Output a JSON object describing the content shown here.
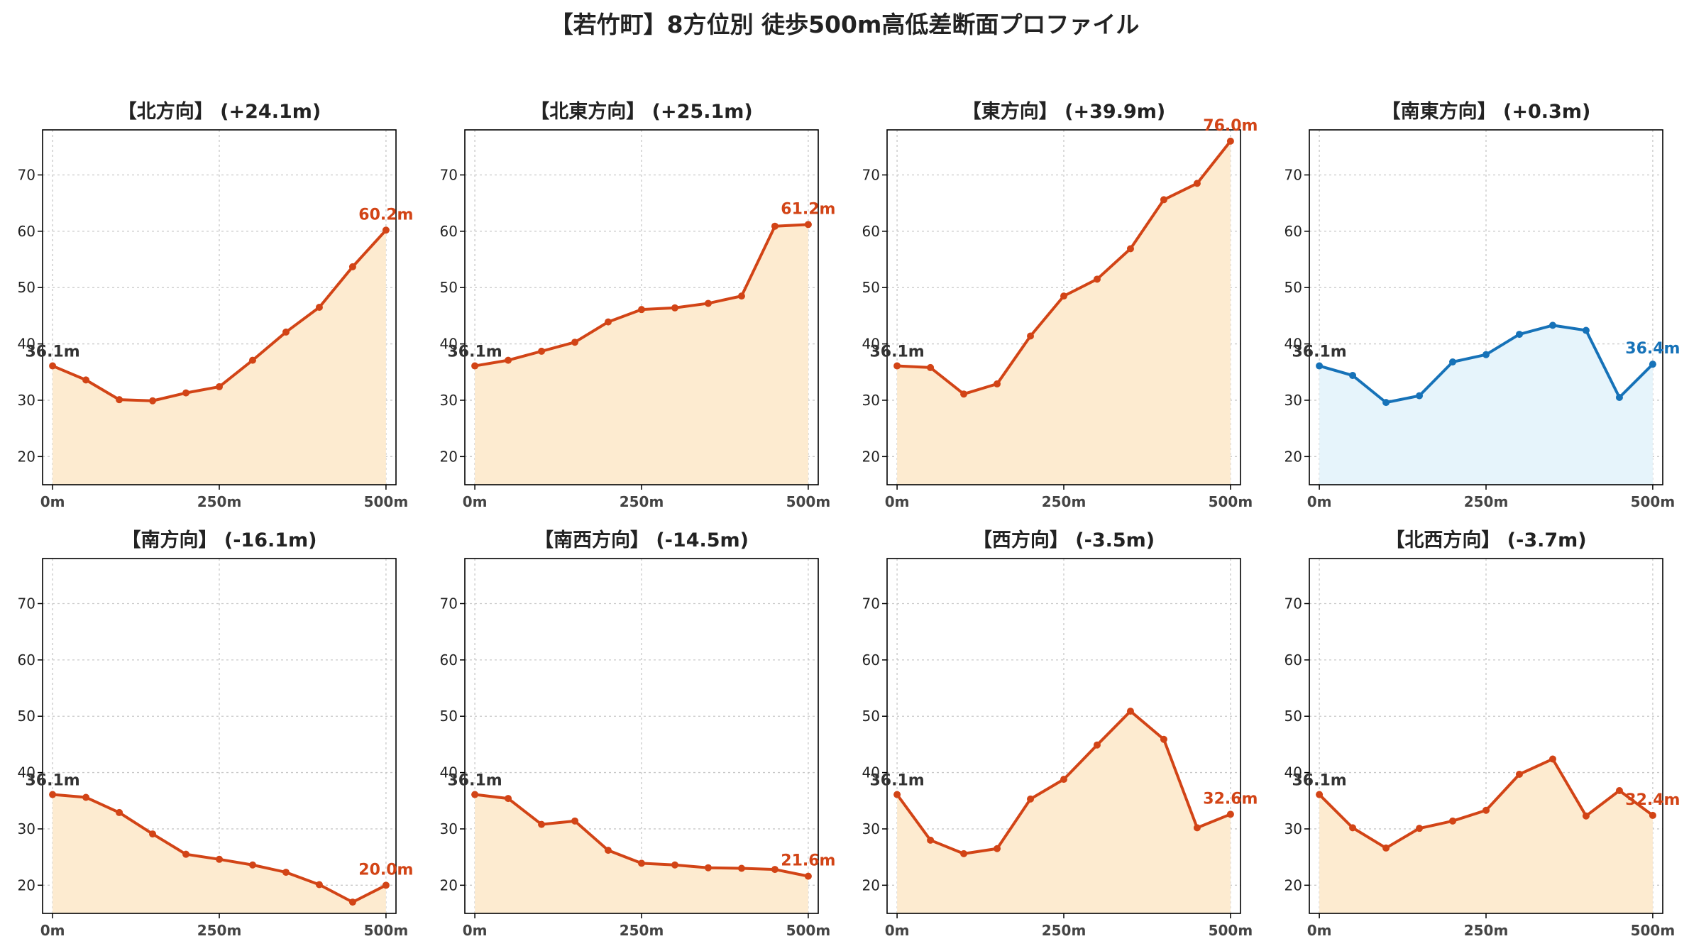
{
  "title": "【若竹町】8方位別 徒歩500m高低差断面プロファイル",
  "colors": {
    "up_line": "#d24416",
    "up_fill": "#fdebd0",
    "flat_line": "#1672b8",
    "flat_fill": "#e6f4fb",
    "grid": "#c8c8c8",
    "start_label": "#333333"
  },
  "chart_data": [
    {
      "type": "area",
      "title": "【北方向】 (+24.1m)",
      "x": [
        0,
        50,
        100,
        150,
        200,
        250,
        300,
        350,
        400,
        450,
        500
      ],
      "values": [
        36.1,
        33.6,
        30.1,
        29.9,
        31.3,
        32.4,
        37.1,
        42.1,
        46.5,
        53.7,
        60.2
      ],
      "x_ticks": [
        "0m",
        "250m",
        "500m"
      ],
      "y_ticks": [
        20,
        30,
        40,
        50,
        60,
        70
      ],
      "ylim": [
        15,
        78
      ],
      "xlim": [
        -15,
        515
      ],
      "start_label": "36.1m",
      "end_label": "60.2m",
      "color_scheme": "up",
      "grid": true
    },
    {
      "type": "area",
      "title": "【北東方向】 (+25.1m)",
      "x": [
        0,
        50,
        100,
        150,
        200,
        250,
        300,
        350,
        400,
        450,
        500
      ],
      "values": [
        36.1,
        37.1,
        38.7,
        40.3,
        43.9,
        46.1,
        46.4,
        47.2,
        48.5,
        60.9,
        61.2
      ],
      "x_ticks": [
        "0m",
        "250m",
        "500m"
      ],
      "y_ticks": [
        20,
        30,
        40,
        50,
        60,
        70
      ],
      "ylim": [
        15,
        78
      ],
      "xlim": [
        -15,
        515
      ],
      "start_label": "36.1m",
      "end_label": "61.2m",
      "color_scheme": "up",
      "grid": true
    },
    {
      "type": "area",
      "title": "【東方向】 (+39.9m)",
      "x": [
        0,
        50,
        100,
        150,
        200,
        250,
        300,
        350,
        400,
        450,
        500
      ],
      "values": [
        36.1,
        35.8,
        31.1,
        32.9,
        41.4,
        48.5,
        51.5,
        56.9,
        65.6,
        68.5,
        76.0
      ],
      "x_ticks": [
        "0m",
        "250m",
        "500m"
      ],
      "y_ticks": [
        20,
        30,
        40,
        50,
        60,
        70
      ],
      "ylim": [
        15,
        78
      ],
      "xlim": [
        -15,
        515
      ],
      "start_label": "36.1m",
      "end_label": "76.0m",
      "color_scheme": "up",
      "grid": true
    },
    {
      "type": "area",
      "title": "【南東方向】 (+0.3m)",
      "x": [
        0,
        50,
        100,
        150,
        200,
        250,
        300,
        350,
        400,
        450,
        500
      ],
      "values": [
        36.1,
        34.4,
        29.6,
        30.8,
        36.8,
        38.1,
        41.7,
        43.3,
        42.4,
        30.5,
        36.4
      ],
      "x_ticks": [
        "0m",
        "250m",
        "500m"
      ],
      "y_ticks": [
        20,
        30,
        40,
        50,
        60,
        70
      ],
      "ylim": [
        15,
        78
      ],
      "xlim": [
        -15,
        515
      ],
      "start_label": "36.1m",
      "end_label": "36.4m",
      "color_scheme": "flat",
      "grid": true
    },
    {
      "type": "area",
      "title": "【南方向】 (-16.1m)",
      "x": [
        0,
        50,
        100,
        150,
        200,
        250,
        300,
        350,
        400,
        450,
        500
      ],
      "values": [
        36.1,
        35.6,
        32.9,
        29.1,
        25.5,
        24.6,
        23.6,
        22.3,
        20.1,
        17.0,
        20.0
      ],
      "x_ticks": [
        "0m",
        "250m",
        "500m"
      ],
      "y_ticks": [
        20,
        30,
        40,
        50,
        60,
        70
      ],
      "ylim": [
        15,
        78
      ],
      "xlim": [
        -15,
        515
      ],
      "start_label": "36.1m",
      "end_label": "20.0m",
      "color_scheme": "up",
      "grid": true
    },
    {
      "type": "area",
      "title": "【南西方向】 (-14.5m)",
      "x": [
        0,
        50,
        100,
        150,
        200,
        250,
        300,
        350,
        400,
        450,
        500
      ],
      "values": [
        36.1,
        35.4,
        30.8,
        31.4,
        26.2,
        23.9,
        23.6,
        23.1,
        23.0,
        22.8,
        21.6
      ],
      "x_ticks": [
        "0m",
        "250m",
        "500m"
      ],
      "y_ticks": [
        20,
        30,
        40,
        50,
        60,
        70
      ],
      "ylim": [
        15,
        78
      ],
      "xlim": [
        -15,
        515
      ],
      "start_label": "36.1m",
      "end_label": "21.6m",
      "color_scheme": "up",
      "grid": true
    },
    {
      "type": "area",
      "title": "【西方向】 (-3.5m)",
      "x": [
        0,
        50,
        100,
        150,
        200,
        250,
        300,
        350,
        400,
        450,
        500
      ],
      "values": [
        36.1,
        28.0,
        25.6,
        26.5,
        35.3,
        38.8,
        44.9,
        50.9,
        45.9,
        30.2,
        32.6
      ],
      "x_ticks": [
        "0m",
        "250m",
        "500m"
      ],
      "y_ticks": [
        20,
        30,
        40,
        50,
        60,
        70
      ],
      "ylim": [
        15,
        78
      ],
      "xlim": [
        -15,
        515
      ],
      "start_label": "36.1m",
      "end_label": "32.6m",
      "color_scheme": "up",
      "grid": true
    },
    {
      "type": "area",
      "title": "【北西方向】 (-3.7m)",
      "x": [
        0,
        50,
        100,
        150,
        200,
        250,
        300,
        350,
        400,
        450,
        500
      ],
      "values": [
        36.1,
        30.2,
        26.6,
        30.1,
        31.4,
        33.3,
        39.7,
        42.4,
        32.3,
        36.8,
        32.4
      ],
      "x_ticks": [
        "0m",
        "250m",
        "500m"
      ],
      "y_ticks": [
        20,
        30,
        40,
        50,
        60,
        70
      ],
      "ylim": [
        15,
        78
      ],
      "xlim": [
        -15,
        515
      ],
      "start_label": "36.1m",
      "end_label": "32.4m",
      "color_scheme": "up",
      "grid": true
    }
  ]
}
